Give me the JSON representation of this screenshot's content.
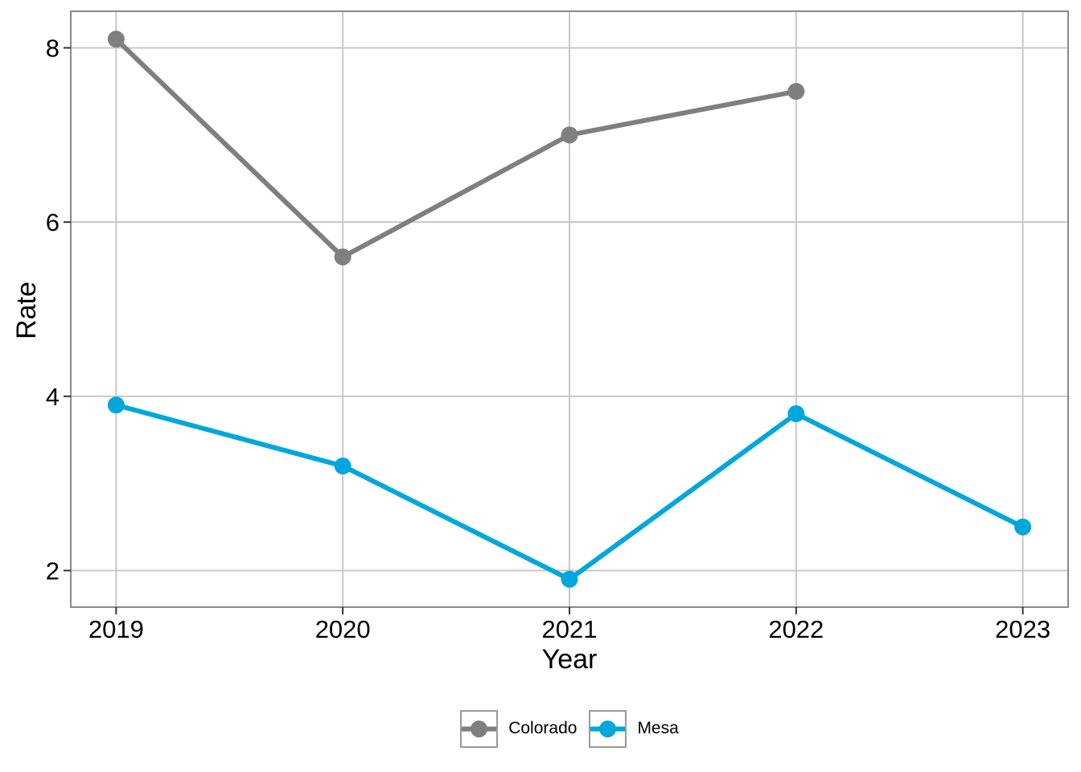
{
  "figure": {
    "background": "#ffffff"
  },
  "chart_data": {
    "type": "line",
    "title": "",
    "xlabel": "Year",
    "ylabel": "Rate",
    "x_ticks": [
      2019,
      2020,
      2021,
      2022,
      2023
    ],
    "y_ticks": [
      2,
      4,
      6,
      8
    ],
    "x_domain": [
      2018.8,
      2023.2
    ],
    "y_domain": [
      1.58,
      8.42
    ],
    "grid": true,
    "legend_position": "bottom",
    "series": [
      {
        "name": "Colorado",
        "color": "#7f7f7f",
        "points": [
          {
            "x": 2019,
            "y": 8.1
          },
          {
            "x": 2020,
            "y": 5.6
          },
          {
            "x": 2021,
            "y": 7.0
          },
          {
            "x": 2022,
            "y": 7.5
          }
        ]
      },
      {
        "name": "Mesa",
        "color": "#00a7dc",
        "points": [
          {
            "x": 2019,
            "y": 3.9
          },
          {
            "x": 2020,
            "y": 3.2
          },
          {
            "x": 2021,
            "y": 1.9
          },
          {
            "x": 2022,
            "y": 3.8
          },
          {
            "x": 2023,
            "y": 2.5
          }
        ]
      }
    ]
  },
  "styles": {
    "gridline_color": "#c8c8c8",
    "panel_border_color": "#8a8a8a",
    "tick_mark_color": "#333333",
    "text_color": "#000000",
    "legend_key_border": "#9a9a9a"
  }
}
